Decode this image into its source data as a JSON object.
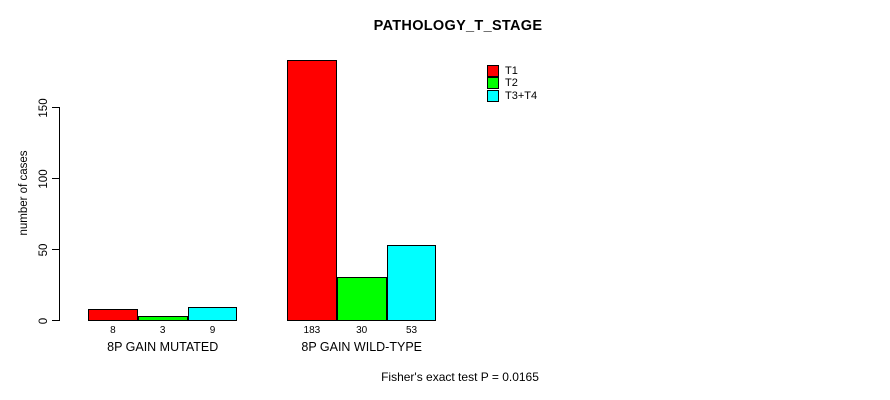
{
  "chart_data": {
    "type": "bar",
    "title": "PATHOLOGY_T_STAGE",
    "ylabel": "number of cases",
    "xlabel": "",
    "categories": [
      "8P GAIN MUTATED",
      "8P GAIN WILD-TYPE"
    ],
    "series": [
      {
        "name": "T1",
        "color": "#ff0000",
        "values": [
          8,
          183
        ]
      },
      {
        "name": "T2",
        "color": "#00ff00",
        "values": [
          3,
          30
        ]
      },
      {
        "name": "T3+T4",
        "color": "#00ffff",
        "values": [
          9,
          53
        ]
      }
    ],
    "yticks": [
      0,
      50,
      100,
      150
    ],
    "ylim": [
      0,
      185
    ],
    "grid": false,
    "legend_position": "top-right",
    "bar_border_color": "#000000",
    "value_labels_shown": true,
    "annotation": "Fisher's exact test P = 0.0165"
  }
}
